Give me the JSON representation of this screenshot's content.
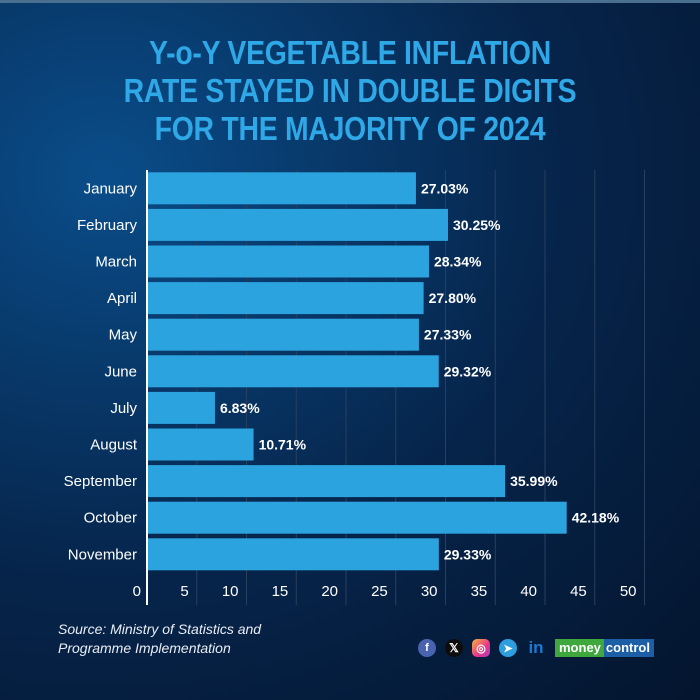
{
  "title_lines": [
    "Y-o-Y VEGETABLE INFLATION",
    "RATE STAYED IN DOUBLE DIGITS",
    "FOR THE MAJORITY OF 2024"
  ],
  "colors": {
    "bar": "#2ba3df",
    "title": "#2ea8e6",
    "text": "#ffffff",
    "gridline": "#2a3f5c"
  },
  "chart_data": {
    "type": "bar",
    "orientation": "horizontal",
    "title": "Y-o-Y VEGETABLE INFLATION RATE STAYED IN DOUBLE DIGITS FOR THE MAJORITY OF 2024",
    "categories": [
      "January",
      "February",
      "March",
      "April",
      "May",
      "June",
      "July",
      "August",
      "September",
      "October",
      "November"
    ],
    "values": [
      27.03,
      30.25,
      28.34,
      27.8,
      27.33,
      29.32,
      6.83,
      10.71,
      35.99,
      42.18,
      29.33
    ],
    "value_labels": [
      "27.03%",
      "30.25%",
      "28.34%",
      "27.80%",
      "27.33%",
      "29.32%",
      "6.83%",
      "10.71%",
      "35.99%",
      "42.18%",
      "29.33%"
    ],
    "xlabel": "",
    "ylabel": "",
    "xlim": [
      0,
      50
    ],
    "xticks": [
      0,
      5,
      10,
      15,
      20,
      25,
      30,
      35,
      40,
      45,
      50
    ],
    "grid": true,
    "legend": "none"
  },
  "source": {
    "line1": "Source: Ministry of Statistics and",
    "line2": "Programme Implementation"
  },
  "social": {
    "facebook": "f",
    "x": "𝕏",
    "instagram": "◎",
    "telegram": "➤",
    "linkedin": "in"
  },
  "brand": {
    "part1": "money",
    "part2": "control"
  }
}
